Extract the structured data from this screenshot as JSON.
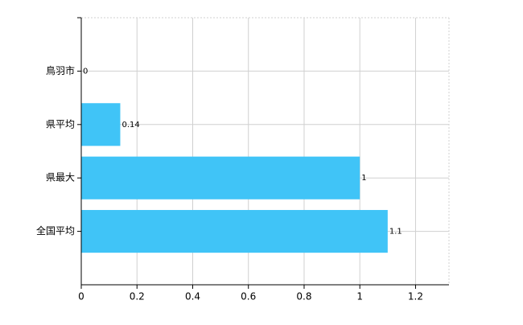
{
  "chart_data": {
    "type": "barh",
    "categories": [
      "鳥羽市",
      "県平均",
      "県最大",
      "全国平均"
    ],
    "values": [
      0,
      0.14,
      1,
      1.1
    ],
    "color": "#40c4f7",
    "xlim": [
      0,
      1.32
    ],
    "xticks": [
      0,
      0.2,
      0.4,
      0.6,
      0.8,
      1,
      1.2
    ],
    "grid": true
  }
}
